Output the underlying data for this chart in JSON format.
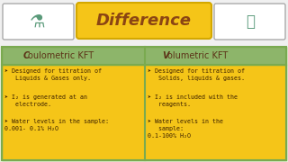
{
  "title": "Difference",
  "title_bg": "#F5C518",
  "title_color": "#8B4513",
  "header_bg": "#8DB56A",
  "header_color": "#5C3317",
  "content_bg": "#F5C518",
  "content_color": "#3B2000",
  "border_color": "#7aaa50",
  "col1_header_bold": "C",
  "col1_header_rest": "oulometric KFT",
  "col2_header_bold": "V",
  "col2_header_rest": "olumetric KFT",
  "col1_items": [
    "➤ Designed for titration of\n   Liquids & Gases only.",
    "➤ I₂ is generated at an\n   electrode.",
    "➤ Water levels in the sample:\n0.001- 0.1% H₂O"
  ],
  "col2_items": [
    "➤ Designed for titration of\n   Solids, liquids & gases.",
    "➤ I₂ is included with the\n   reagents.",
    "➤ Water levels in the\n   sample:\n0.1-100% H₂O"
  ],
  "fig_bg": "#ffffff",
  "top_bg": "#ffffff",
  "table_border": "#7aaa50"
}
